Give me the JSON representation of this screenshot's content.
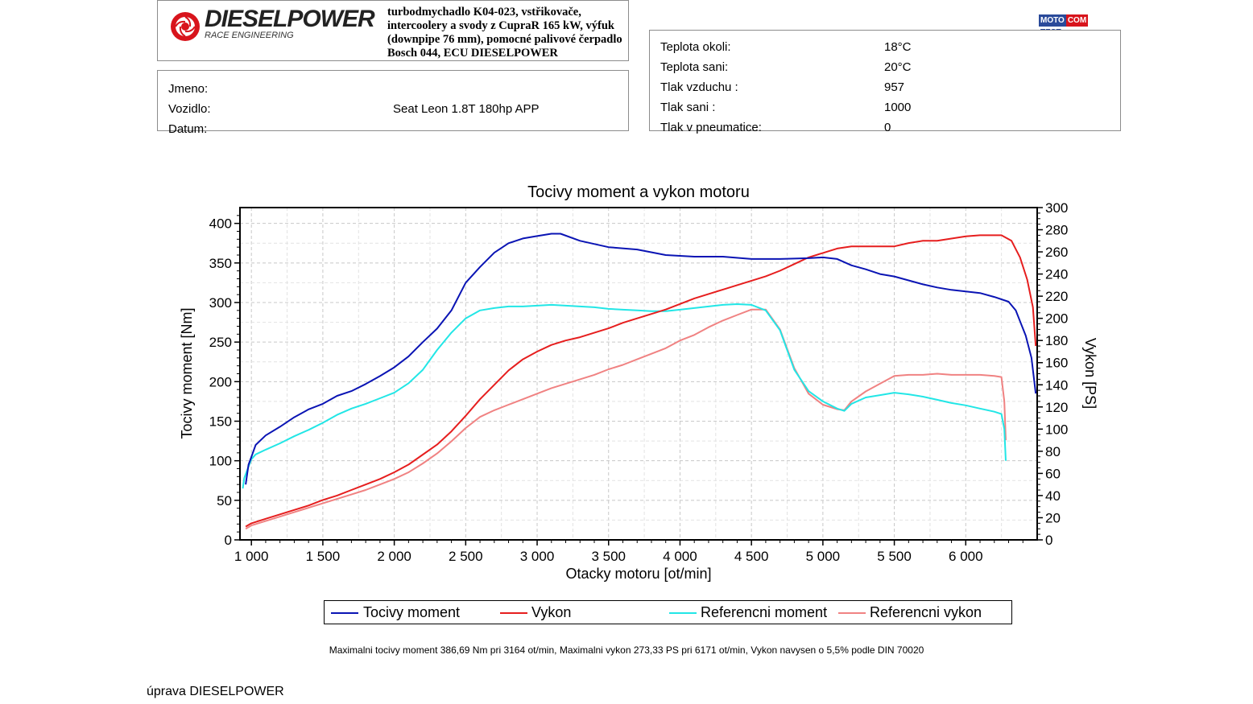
{
  "header": {
    "brand": "DIESELPOWER",
    "brand_sub": "RACE ENGINEERING",
    "modifications": "turbodmychadlo K04-023, vstřikovače, intercoolery a svody z CupraR 165 kW, výfuk (downpipe 76 mm), pomocné palivové čerpadlo Bosch 044, ECU DIESELPOWER",
    "partner_logo": {
      "part1": "MOTO",
      "part2": "COM",
      "part3": "TEST"
    }
  },
  "info": {
    "rows": [
      {
        "label": "Jmeno:",
        "value": ""
      },
      {
        "label": "Vozidlo:",
        "value": "Seat Leon 1.8T 180hp APP"
      },
      {
        "label": "Datum:",
        "value": ""
      }
    ]
  },
  "conditions": {
    "rows": [
      {
        "label": "Teplota okoli:",
        "value": "18°C"
      },
      {
        "label": "Teplota sani:",
        "value": "20°C"
      },
      {
        "label": "Tlak vzduchu :",
        "value": "957"
      },
      {
        "label": "Tlak sani :",
        "value": "1000"
      },
      {
        "label": "Tlak v pneumatice:",
        "value": "0"
      }
    ]
  },
  "chart_data": {
    "type": "line",
    "title": "Tocivy moment a vykon motoru",
    "xlabel": "Otacky motoru [ot/min]",
    "ylabel": "Tocivy moment [Nm]",
    "y2label": "Vykon [PS]",
    "xlim": [
      920,
      6500
    ],
    "ylim": [
      0,
      420
    ],
    "y2lim": [
      0,
      300
    ],
    "xticks": [
      1000,
      1500,
      2000,
      2500,
      3000,
      3500,
      4000,
      4500,
      5000,
      5500,
      6000
    ],
    "xtick_labels": [
      "1 000",
      "1 500",
      "2 000",
      "2 500",
      "3 000",
      "3 500",
      "4 000",
      "4 500",
      "5 000",
      "5 500",
      "6 000"
    ],
    "yticks": [
      0,
      50,
      100,
      150,
      200,
      250,
      300,
      350,
      400
    ],
    "y2ticks": [
      0,
      20,
      40,
      60,
      80,
      100,
      120,
      140,
      160,
      180,
      200,
      220,
      240,
      260,
      280,
      300
    ],
    "grid": true,
    "legend_position": "bottom",
    "series": [
      {
        "name": "Tocivy moment",
        "axis": "left",
        "color": "#0a14b4",
        "points": [
          [
            960,
            70
          ],
          [
            980,
            95
          ],
          [
            1000,
            105
          ],
          [
            1030,
            120
          ],
          [
            1100,
            132
          ],
          [
            1200,
            143
          ],
          [
            1300,
            155
          ],
          [
            1400,
            165
          ],
          [
            1500,
            172
          ],
          [
            1600,
            182
          ],
          [
            1700,
            188
          ],
          [
            1800,
            197
          ],
          [
            1900,
            207
          ],
          [
            2000,
            218
          ],
          [
            2100,
            232
          ],
          [
            2200,
            250
          ],
          [
            2300,
            267
          ],
          [
            2400,
            290
          ],
          [
            2500,
            325
          ],
          [
            2600,
            345
          ],
          [
            2700,
            363
          ],
          [
            2800,
            375
          ],
          [
            2900,
            381
          ],
          [
            3000,
            384
          ],
          [
            3100,
            387
          ],
          [
            3164,
            387
          ],
          [
            3300,
            378
          ],
          [
            3500,
            370
          ],
          [
            3700,
            367
          ],
          [
            3900,
            360
          ],
          [
            4100,
            358
          ],
          [
            4300,
            358
          ],
          [
            4500,
            355
          ],
          [
            4700,
            355
          ],
          [
            4900,
            356
          ],
          [
            5000,
            357
          ],
          [
            5100,
            355
          ],
          [
            5200,
            347
          ],
          [
            5300,
            342
          ],
          [
            5400,
            336
          ],
          [
            5500,
            333
          ],
          [
            5600,
            328
          ],
          [
            5700,
            323
          ],
          [
            5800,
            319
          ],
          [
            5900,
            316
          ],
          [
            6000,
            314
          ],
          [
            6100,
            312
          ],
          [
            6200,
            307
          ],
          [
            6300,
            301
          ],
          [
            6350,
            290
          ],
          [
            6420,
            258
          ],
          [
            6460,
            230
          ],
          [
            6490,
            185
          ]
        ]
      },
      {
        "name": "Vykon",
        "axis": "right",
        "color": "#e61e1e",
        "points": [
          [
            960,
            12
          ],
          [
            1000,
            15
          ],
          [
            1100,
            19
          ],
          [
            1200,
            23
          ],
          [
            1300,
            27
          ],
          [
            1400,
            31
          ],
          [
            1500,
            36
          ],
          [
            1600,
            40
          ],
          [
            1700,
            45
          ],
          [
            1800,
            50
          ],
          [
            1900,
            55
          ],
          [
            2000,
            61
          ],
          [
            2100,
            68
          ],
          [
            2200,
            77
          ],
          [
            2300,
            86
          ],
          [
            2400,
            98
          ],
          [
            2500,
            112
          ],
          [
            2600,
            127
          ],
          [
            2700,
            140
          ],
          [
            2800,
            153
          ],
          [
            2900,
            163
          ],
          [
            3000,
            170
          ],
          [
            3100,
            176
          ],
          [
            3200,
            180
          ],
          [
            3300,
            183
          ],
          [
            3400,
            187
          ],
          [
            3500,
            191
          ],
          [
            3600,
            196
          ],
          [
            3700,
            200
          ],
          [
            3800,
            204
          ],
          [
            3900,
            208
          ],
          [
            4000,
            213
          ],
          [
            4100,
            218
          ],
          [
            4200,
            222
          ],
          [
            4300,
            226
          ],
          [
            4400,
            230
          ],
          [
            4500,
            234
          ],
          [
            4600,
            238
          ],
          [
            4700,
            243
          ],
          [
            4800,
            249
          ],
          [
            4900,
            255
          ],
          [
            5000,
            259
          ],
          [
            5100,
            263
          ],
          [
            5200,
            265
          ],
          [
            5300,
            265
          ],
          [
            5400,
            265
          ],
          [
            5500,
            265
          ],
          [
            5600,
            268
          ],
          [
            5700,
            270
          ],
          [
            5800,
            270
          ],
          [
            5900,
            272
          ],
          [
            6000,
            274
          ],
          [
            6100,
            275
          ],
          [
            6171,
            275
          ],
          [
            6250,
            275
          ],
          [
            6320,
            270
          ],
          [
            6380,
            255
          ],
          [
            6430,
            235
          ],
          [
            6470,
            210
          ],
          [
            6490,
            175
          ]
        ]
      },
      {
        "name": "Referencni moment",
        "axis": "left",
        "color": "#22e6e6",
        "points": [
          [
            940,
            65
          ],
          [
            950,
            78
          ],
          [
            970,
            88
          ],
          [
            1000,
            102
          ],
          [
            1030,
            108
          ],
          [
            1100,
            114
          ],
          [
            1200,
            122
          ],
          [
            1300,
            131
          ],
          [
            1400,
            139
          ],
          [
            1500,
            148
          ],
          [
            1600,
            158
          ],
          [
            1700,
            166
          ],
          [
            1800,
            172
          ],
          [
            1900,
            179
          ],
          [
            2000,
            186
          ],
          [
            2100,
            198
          ],
          [
            2200,
            215
          ],
          [
            2300,
            240
          ],
          [
            2400,
            262
          ],
          [
            2500,
            280
          ],
          [
            2600,
            290
          ],
          [
            2700,
            293
          ],
          [
            2800,
            295
          ],
          [
            2900,
            295
          ],
          [
            3000,
            296
          ],
          [
            3100,
            297
          ],
          [
            3200,
            296
          ],
          [
            3300,
            295
          ],
          [
            3400,
            294
          ],
          [
            3500,
            292
          ],
          [
            3600,
            291
          ],
          [
            3700,
            290
          ],
          [
            3800,
            289
          ],
          [
            3900,
            289
          ],
          [
            4000,
            291
          ],
          [
            4100,
            293
          ],
          [
            4200,
            295
          ],
          [
            4300,
            297
          ],
          [
            4400,
            298
          ],
          [
            4500,
            297
          ],
          [
            4600,
            290
          ],
          [
            4700,
            265
          ],
          [
            4800,
            215
          ],
          [
            4900,
            188
          ],
          [
            5000,
            175
          ],
          [
            5100,
            166
          ],
          [
            5150,
            163
          ],
          [
            5200,
            172
          ],
          [
            5300,
            180
          ],
          [
            5400,
            183
          ],
          [
            5500,
            186
          ],
          [
            5600,
            184
          ],
          [
            5700,
            181
          ],
          [
            5800,
            177
          ],
          [
            5900,
            173
          ],
          [
            6000,
            170
          ],
          [
            6100,
            166
          ],
          [
            6200,
            162
          ],
          [
            6250,
            159
          ],
          [
            6270,
            140
          ],
          [
            6280,
            100
          ]
        ]
      },
      {
        "name": "Referencni vykon",
        "axis": "right",
        "color": "#f08282",
        "points": [
          [
            960,
            10
          ],
          [
            1000,
            13
          ],
          [
            1100,
            17
          ],
          [
            1200,
            21
          ],
          [
            1300,
            25
          ],
          [
            1400,
            29
          ],
          [
            1500,
            33
          ],
          [
            1600,
            37
          ],
          [
            1700,
            41
          ],
          [
            1800,
            45
          ],
          [
            1900,
            50
          ],
          [
            2000,
            55
          ],
          [
            2100,
            61
          ],
          [
            2200,
            69
          ],
          [
            2300,
            78
          ],
          [
            2400,
            89
          ],
          [
            2500,
            101
          ],
          [
            2600,
            111
          ],
          [
            2700,
            117
          ],
          [
            2800,
            122
          ],
          [
            2900,
            127
          ],
          [
            3000,
            132
          ],
          [
            3100,
            137
          ],
          [
            3200,
            141
          ],
          [
            3300,
            145
          ],
          [
            3400,
            149
          ],
          [
            3500,
            154
          ],
          [
            3600,
            158
          ],
          [
            3700,
            163
          ],
          [
            3800,
            168
          ],
          [
            3900,
            173
          ],
          [
            4000,
            180
          ],
          [
            4100,
            185
          ],
          [
            4200,
            192
          ],
          [
            4300,
            198
          ],
          [
            4400,
            203
          ],
          [
            4500,
            208
          ],
          [
            4600,
            208
          ],
          [
            4700,
            190
          ],
          [
            4800,
            155
          ],
          [
            4900,
            132
          ],
          [
            5000,
            122
          ],
          [
            5100,
            118
          ],
          [
            5150,
            117
          ],
          [
            5200,
            125
          ],
          [
            5300,
            134
          ],
          [
            5400,
            141
          ],
          [
            5500,
            148
          ],
          [
            5600,
            149
          ],
          [
            5700,
            149
          ],
          [
            5800,
            150
          ],
          [
            5900,
            149
          ],
          [
            6000,
            149
          ],
          [
            6100,
            149
          ],
          [
            6200,
            148
          ],
          [
            6250,
            147
          ],
          [
            6270,
            125
          ],
          [
            6280,
            90
          ]
        ]
      }
    ],
    "summary": "Maximalni tocivy moment 386,69 Nm pri 3164 ot/min,  Maximalni vykon 273,33 PS pri 6171 ot/min,  Vykon navysen o 5,5% podle DIN 70020"
  },
  "footer": "úprava DIESELPOWER"
}
